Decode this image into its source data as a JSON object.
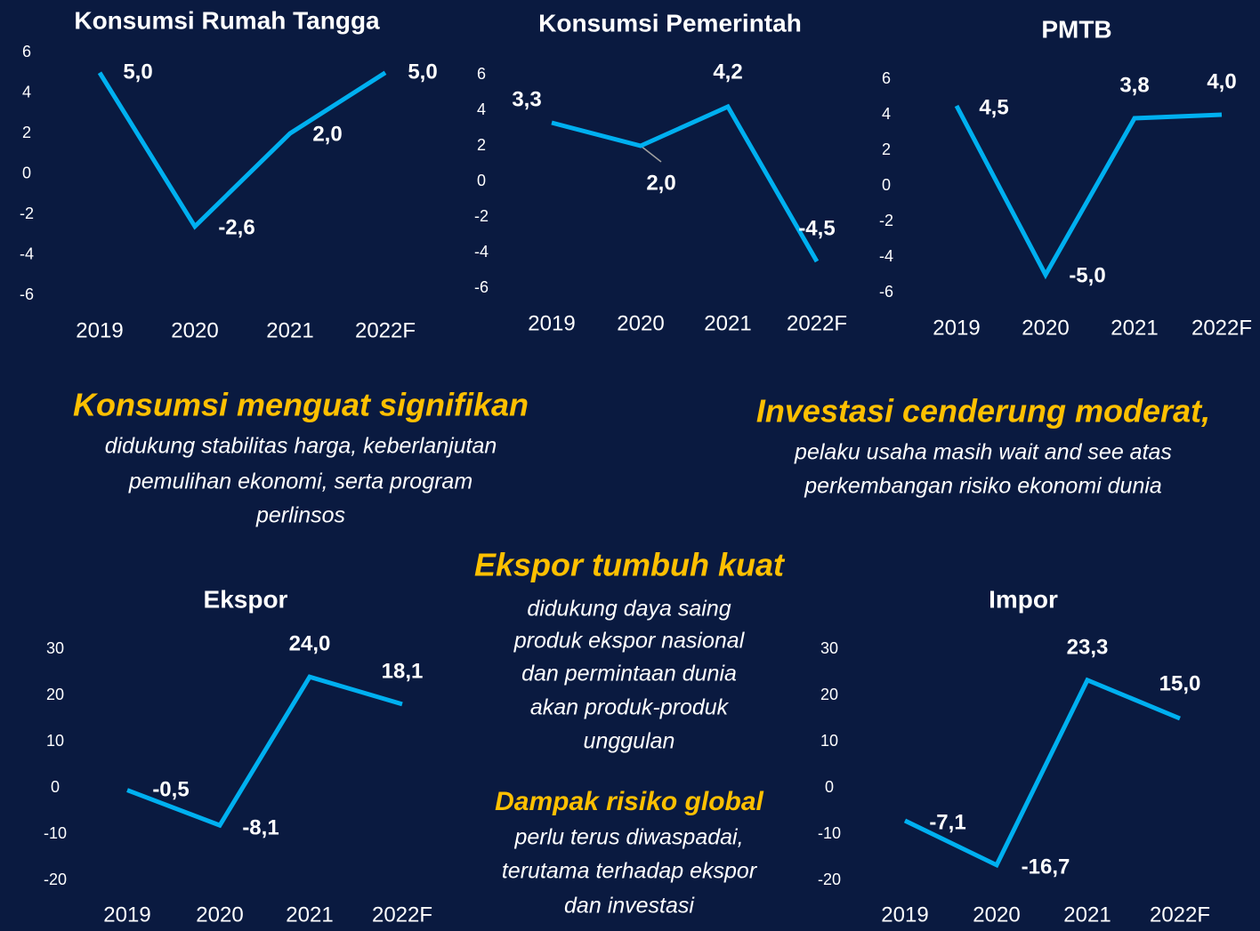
{
  "chart_data": [
    {
      "type": "line",
      "title": "Konsumsi Rumah Tangga",
      "categories": [
        "2019",
        "2020",
        "2021",
        "2022F"
      ],
      "values": [
        5.0,
        -2.6,
        2.0,
        5.0
      ],
      "value_labels": [
        "5,0",
        "-2,6",
        "2,0",
        "5,0"
      ],
      "color": "#00b0f0",
      "ylim": [
        -6,
        6
      ],
      "yticks": [
        6,
        4,
        2,
        0,
        -2,
        -4,
        -6
      ]
    },
    {
      "type": "line",
      "title": "Konsumsi Pemerintah",
      "categories": [
        "2019",
        "2020",
        "2021",
        "2022F"
      ],
      "values": [
        3.3,
        2.0,
        4.2,
        -4.5
      ],
      "value_labels": [
        "3,3",
        "2,0",
        "4,2",
        "-4,5"
      ],
      "color": "#00b0f0",
      "ylim": [
        -6,
        6
      ],
      "yticks": [
        6,
        4,
        2,
        0,
        -2,
        -4,
        -6
      ]
    },
    {
      "type": "line",
      "title": "PMTB",
      "categories": [
        "2019",
        "2020",
        "2021",
        "2022F"
      ],
      "values": [
        4.5,
        -5.0,
        3.8,
        4.0
      ],
      "value_labels": [
        "4,5",
        "-5,0",
        "3,8",
        "4,0"
      ],
      "color": "#00b0f0",
      "ylim": [
        -6,
        6
      ],
      "yticks": [
        6,
        4,
        2,
        0,
        -2,
        -4,
        -6
      ]
    },
    {
      "type": "line",
      "title": "Ekspor",
      "categories": [
        "2019",
        "2020",
        "2021",
        "2022F"
      ],
      "values": [
        -0.5,
        -8.1,
        24.0,
        18.1
      ],
      "value_labels": [
        "-0,5",
        "-8,1",
        "24,0",
        "18,1"
      ],
      "color": "#00b0f0",
      "ylim": [
        -20,
        30
      ],
      "yticks": [
        30,
        20,
        10,
        0,
        -10,
        -20
      ]
    },
    {
      "type": "line",
      "title": "Impor",
      "categories": [
        "2019",
        "2020",
        "2021",
        "2022F"
      ],
      "values": [
        -7.1,
        -16.7,
        23.3,
        15.0
      ],
      "value_labels": [
        "-7,1",
        "-16,7",
        "23,3",
        "15,0"
      ],
      "color": "#00b0f0",
      "ylim": [
        -20,
        30
      ],
      "yticks": [
        30,
        20,
        10,
        0,
        -10,
        -20
      ]
    }
  ],
  "captions": [
    {
      "heading": "Konsumsi menguat signifikan",
      "lines": [
        "didukung stabilitas harga, keberlanjutan",
        "pemulihan ekonomi, serta program",
        "perlinsos"
      ]
    },
    {
      "heading": "Investasi cenderung moderat,",
      "lines": [
        "pelaku usaha masih wait and see atas",
        "perkembangan risiko ekonomi dunia"
      ]
    },
    {
      "heading": "Ekspor tumbuh kuat",
      "lines": [
        "didukung daya saing",
        "produk ekspor nasional",
        "dan permintaan dunia",
        "akan produk-produk",
        "unggulan"
      ]
    },
    {
      "heading": "Dampak risiko global",
      "lines": [
        "perlu terus diwaspadai,",
        "terutama terhadap ekspor",
        "dan investasi"
      ]
    }
  ]
}
